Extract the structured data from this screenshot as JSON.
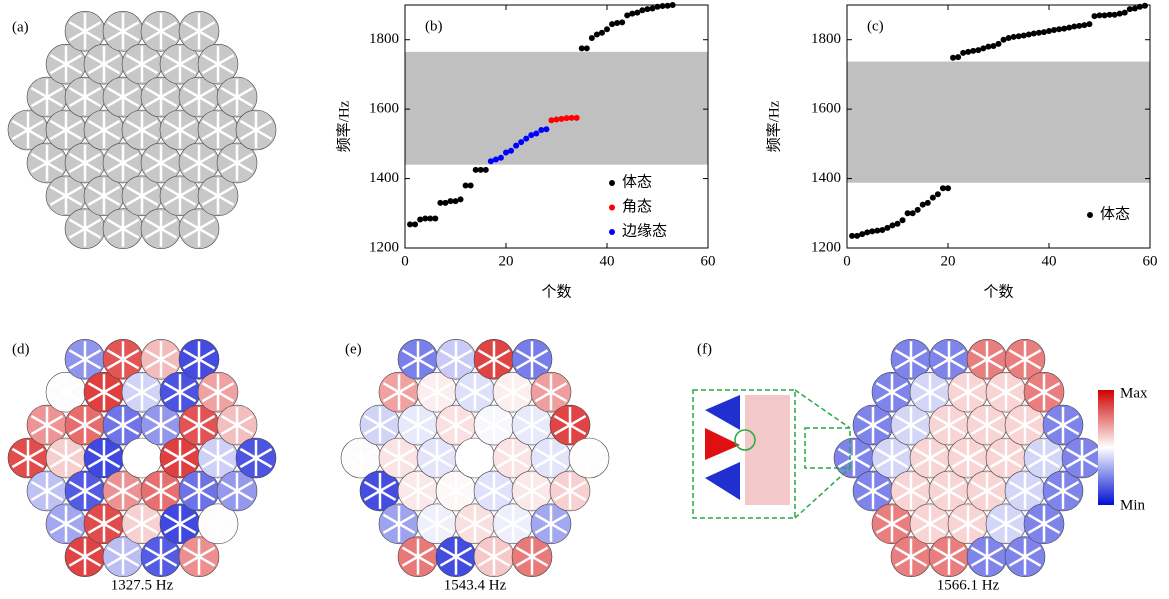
{
  "chart_data": [
    {
      "type": "scatter",
      "label": "(b)",
      "xlabel": "个数",
      "ylabel": "频率/Hz",
      "xlim": [
        0,
        60
      ],
      "ylim": [
        1200,
        1900
      ],
      "xticks": [
        0,
        20,
        40,
        60
      ],
      "yticks": [
        1200,
        1400,
        1600,
        1800
      ],
      "band": [
        1440,
        1765
      ],
      "band_color": "#c0c0c0",
      "series": [
        {
          "name": "体态",
          "color": "#000000",
          "x": [
            1,
            2,
            3,
            4,
            5,
            6,
            7,
            8,
            9,
            10,
            11,
            12,
            13,
            14,
            15,
            16,
            35,
            36,
            37,
            38,
            39,
            40,
            41,
            42,
            43,
            44,
            45,
            46,
            47,
            48,
            49,
            50,
            51,
            52,
            53
          ],
          "values": [
            1268,
            1268,
            1282,
            1285,
            1285,
            1285,
            1330,
            1330,
            1335,
            1335,
            1340,
            1380,
            1380,
            1425,
            1425,
            1425,
            1775,
            1775,
            1805,
            1815,
            1820,
            1830,
            1845,
            1848,
            1850,
            1870,
            1875,
            1878,
            1885,
            1888,
            1890,
            1895,
            1897,
            1898,
            1900
          ]
        },
        {
          "name": "角态",
          "color": "#ff0000",
          "x": [
            29,
            30,
            31,
            32,
            33,
            34
          ],
          "values": [
            1568,
            1570,
            1572,
            1574,
            1575,
            1575
          ]
        },
        {
          "name": "边缘态",
          "color": "#0000ff",
          "x": [
            17,
            18,
            19,
            20,
            21,
            22,
            23,
            24,
            25,
            26,
            27,
            28
          ],
          "values": [
            1450,
            1455,
            1460,
            1475,
            1480,
            1495,
            1505,
            1515,
            1525,
            1530,
            1540,
            1542
          ]
        }
      ]
    },
    {
      "type": "scatter",
      "label": "(c)",
      "xlabel": "个数",
      "ylabel": "频率/Hz",
      "xlim": [
        0,
        60
      ],
      "ylim": [
        1200,
        1900
      ],
      "xticks": [
        0,
        20,
        40,
        60
      ],
      "yticks": [
        1200,
        1400,
        1600,
        1800
      ],
      "band": [
        1388,
        1737
      ],
      "band_color": "#c0c0c0",
      "series": [
        {
          "name": "体态",
          "color": "#000000",
          "x": [
            1,
            2,
            3,
            4,
            5,
            6,
            7,
            8,
            9,
            10,
            11,
            12,
            13,
            14,
            15,
            16,
            17,
            18,
            19,
            20,
            21,
            22,
            23,
            24,
            25,
            26,
            27,
            28,
            29,
            30,
            31,
            32,
            33,
            34,
            35,
            36,
            37,
            38,
            39,
            40,
            41,
            42,
            43,
            44,
            45,
            46,
            47,
            48,
            49,
            50,
            51,
            52,
            53,
            54,
            55,
            56,
            57,
            58,
            59
          ],
          "values": [
            1235,
            1235,
            1240,
            1245,
            1248,
            1250,
            1252,
            1258,
            1265,
            1270,
            1280,
            1300,
            1300,
            1310,
            1325,
            1330,
            1345,
            1355,
            1372,
            1372,
            1748,
            1750,
            1762,
            1765,
            1768,
            1770,
            1775,
            1780,
            1782,
            1788,
            1800,
            1805,
            1808,
            1810,
            1812,
            1815,
            1818,
            1820,
            1822,
            1825,
            1828,
            1830,
            1832,
            1835,
            1838,
            1840,
            1842,
            1845,
            1868,
            1870,
            1870,
            1872,
            1872,
            1875,
            1878,
            1888,
            1890,
            1895,
            1898
          ]
        }
      ]
    }
  ],
  "panels": {
    "a": "(a)",
    "d": "(d)",
    "e": "(e)",
    "f": "(f)",
    "captions": [
      "1327.5 Hz",
      "1543.4 Hz",
      "1566.1 Hz"
    ],
    "colorbar": {
      "max": "Max",
      "min": "Min"
    }
  }
}
